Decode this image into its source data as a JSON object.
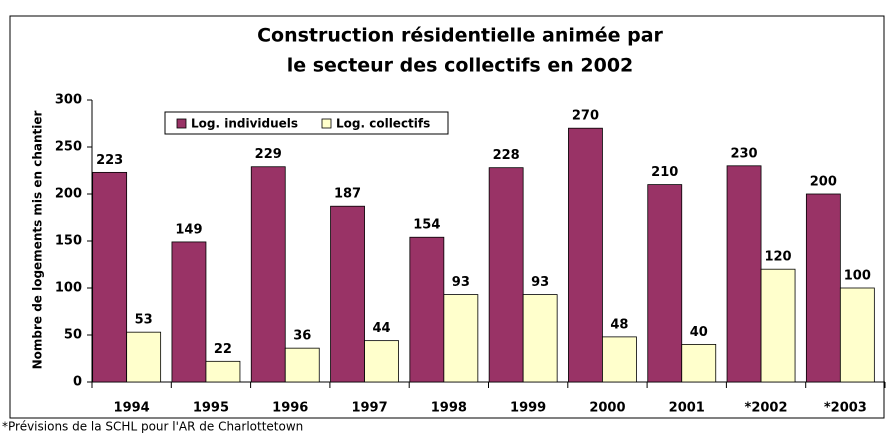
{
  "chart_data": {
    "type": "bar",
    "title": "Construction résidentielle animée par",
    "subtitle": "le secteur des collectifs en 2002",
    "y_label": "Nombre de logements mis en chantier",
    "footnote": "*Prévisions de la SCHL pour l'AR de Charlottetown",
    "categories": [
      "1994",
      "1995",
      "1996",
      "1997",
      "1998",
      "1999",
      "2000",
      "2001",
      "*2002",
      "*2003"
    ],
    "series": [
      {
        "name": "Log. individuels",
        "color": "#993366",
        "values": [
          223,
          149,
          229,
          187,
          154,
          228,
          270,
          210,
          230,
          200
        ]
      },
      {
        "name": "Log. collectifs",
        "color": "#ffffcc",
        "values": [
          53,
          22,
          36,
          44,
          93,
          93,
          48,
          40,
          120,
          100
        ]
      }
    ],
    "ylim": [
      0,
      300
    ],
    "yticks": [
      0,
      50,
      100,
      150,
      200,
      250,
      300
    ],
    "grid": false,
    "legend": "top-left"
  }
}
